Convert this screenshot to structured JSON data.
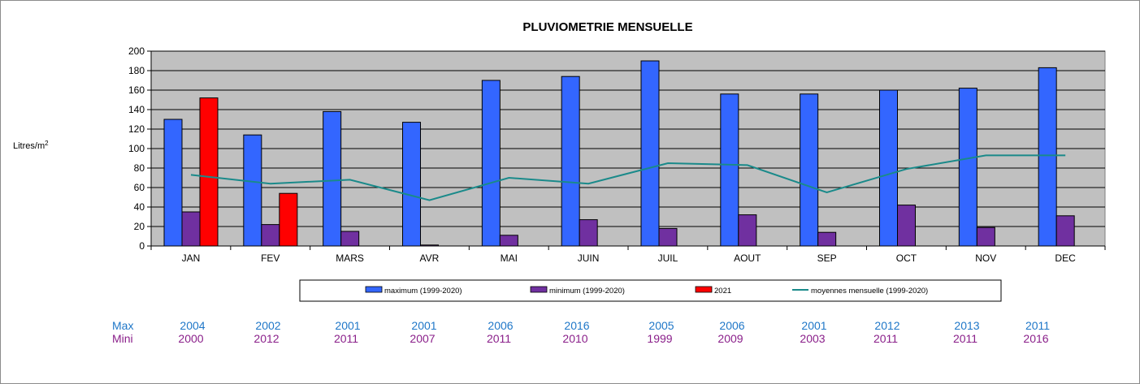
{
  "chart_data": {
    "type": "bar",
    "title": "PLUVIOMETRIE MENSUELLE",
    "ylabel": "Litres/m",
    "ylabel_sup": "2",
    "ylim": [
      0,
      200
    ],
    "yticks": [
      0,
      20,
      40,
      60,
      80,
      100,
      120,
      140,
      160,
      180,
      200
    ],
    "grid": true,
    "legend_position": "bottom",
    "categories": [
      "JAN",
      "FEV",
      "MARS",
      "AVR",
      "MAI",
      "JUIN",
      "JUIL",
      "AOUT",
      "SEP",
      "OCT",
      "NOV",
      "DEC"
    ],
    "series": [
      {
        "name": "maximum (1999-2020)",
        "kind": "bar",
        "color": "#3366ff",
        "values": [
          130,
          114,
          138,
          127,
          170,
          174,
          190,
          156,
          156,
          160,
          162,
          183
        ]
      },
      {
        "name": "minimum (1999-2020)",
        "kind": "bar",
        "color": "#7030a0",
        "values": [
          35,
          22,
          15,
          1,
          11,
          27,
          18,
          32,
          14,
          42,
          19,
          31
        ]
      },
      {
        "name": "2021",
        "kind": "bar",
        "color": "#ff0000",
        "values": [
          152,
          54,
          null,
          null,
          null,
          null,
          null,
          null,
          null,
          null,
          null,
          null
        ]
      },
      {
        "name": "moyennes mensuelle (1999-2020)",
        "kind": "line",
        "color": "#1a8a8a",
        "values": [
          73,
          64,
          68,
          47,
          70,
          64,
          85,
          83,
          55,
          79,
          93,
          93
        ]
      }
    ],
    "plot_bg": "#c0c0c0",
    "axis_color": "#000000"
  },
  "years_table": {
    "max_label": "Max",
    "min_label": "Mini",
    "max_years": [
      "2004",
      "2002",
      "2001",
      "2001",
      "2006",
      "2016",
      "2005",
      "2006",
      "2001",
      "2012",
      "2013",
      "2011"
    ],
    "min_years": [
      "2000",
      "2012",
      "2011",
      "2007",
      "2011",
      "2010",
      "1999",
      "2009",
      "2003",
      "2011",
      "2011",
      "2016"
    ]
  }
}
